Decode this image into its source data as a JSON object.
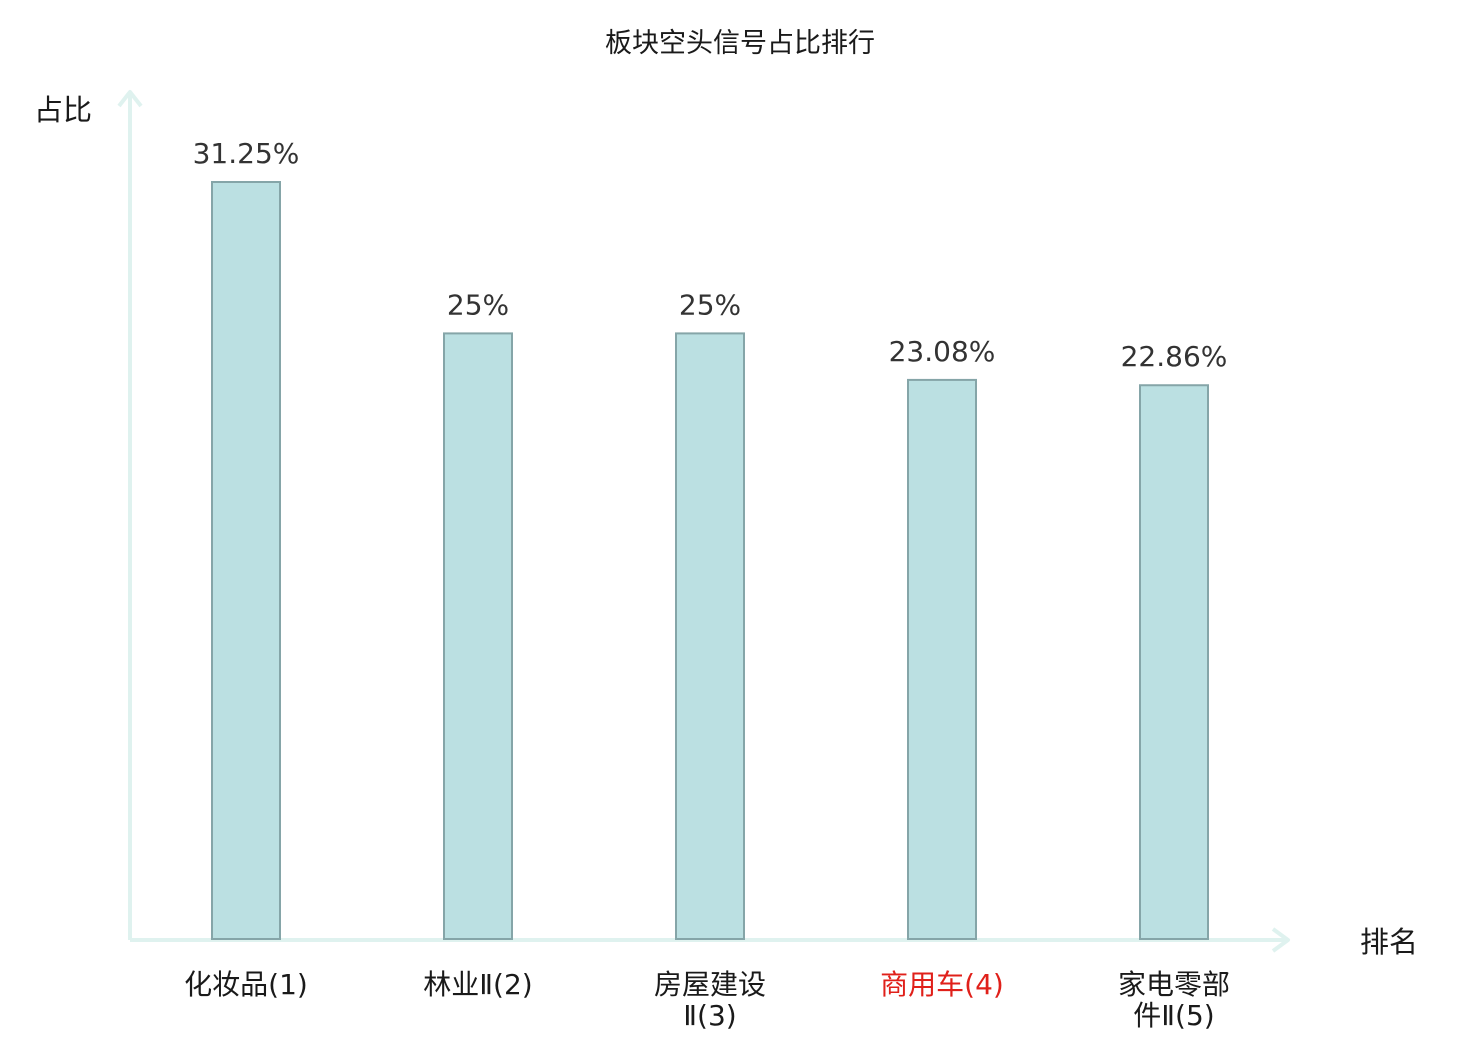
{
  "chart_data": {
    "type": "bar",
    "title": "板块空头信号占比排行",
    "xlabel": "排名",
    "ylabel": "占比",
    "categories": [
      [
        "化妆品(1)"
      ],
      [
        "林业Ⅱ(2)"
      ],
      [
        "房屋建设",
        "Ⅱ(3)"
      ],
      [
        "商用车(4)"
      ],
      [
        "家电零部",
        "件Ⅱ(5)"
      ]
    ],
    "values": [
      31.25,
      25,
      25,
      23.08,
      22.86
    ],
    "value_labels": [
      "31.25%",
      "25%",
      "25%",
      "23.08%",
      "22.86%"
    ],
    "highlight_index": 3,
    "ylim": [
      0,
      31.25
    ],
    "grid": false,
    "legend": "none"
  },
  "colors": {
    "bar_fill": "#bbe0e2",
    "bar_stroke": "#85a5a8",
    "axis": "#dff2ef",
    "label_default": "#1a1a1a",
    "label_highlight": "#e0201a"
  }
}
